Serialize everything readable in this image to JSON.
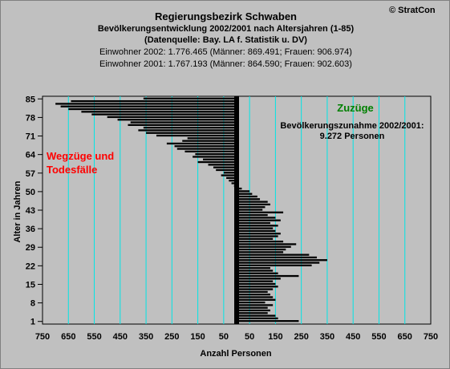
{
  "header": {
    "title": "Regierungsbezirk Schwaben",
    "subtitle": "Bevölkerungsentwicklung 2002/2001 nach Altersjahren (1-85)",
    "source": "(Datenquelle: Bay. LA f. Statistik u. DV)",
    "pop2002": "Einwohner 2002: 1.776.465  (Männer: 869.491; Frauen: 906.974)",
    "pop2001": "Einwohner 2001: 1.767.193  (Männer: 864.590; Frauen: 902.603)",
    "copyright": "© StratCon"
  },
  "annotations": {
    "left_line1": "Wegzüge und",
    "left_line2": "Todesfälle",
    "right_label": "Zuzüge",
    "increase_line1": "Bevölkerungszunahme 2002/2001:",
    "increase_line2": "9.272 Personen"
  },
  "colors": {
    "background": "#c0c0c0",
    "grid": "#00e5e5",
    "bars": "#000000",
    "left_annotation": "#ff0000",
    "right_annotation": "#008000"
  },
  "chart_data": {
    "type": "bar",
    "orientation": "horizontal",
    "xlabel": "Anzahl Personen",
    "ylabel": "Alter in Jahren",
    "xlim": [
      -750,
      750
    ],
    "x_ticks": [
      -750,
      -650,
      -550,
      -450,
      -350,
      -250,
      -150,
      -50,
      50,
      150,
      250,
      350,
      450,
      550,
      650,
      750
    ],
    "x_tick_labels": [
      "750",
      "650",
      "550",
      "450",
      "350",
      "250",
      "150",
      "50",
      "50",
      "150",
      "250",
      "350",
      "450",
      "550",
      "650",
      "750"
    ],
    "y_ticks": [
      1,
      8,
      15,
      22,
      29,
      36,
      43,
      50,
      57,
      64,
      71,
      78,
      85
    ],
    "grid": true,
    "ages": [
      1,
      2,
      3,
      4,
      5,
      6,
      7,
      8,
      9,
      10,
      11,
      12,
      13,
      14,
      15,
      16,
      17,
      18,
      19,
      20,
      21,
      22,
      23,
      24,
      25,
      26,
      27,
      28,
      29,
      30,
      31,
      32,
      33,
      34,
      35,
      36,
      37,
      38,
      39,
      40,
      41,
      42,
      43,
      44,
      45,
      46,
      47,
      48,
      49,
      50,
      51,
      52,
      53,
      54,
      55,
      56,
      57,
      58,
      59,
      60,
      61,
      62,
      63,
      64,
      65,
      66,
      67,
      68,
      69,
      70,
      71,
      72,
      73,
      74,
      75,
      76,
      77,
      78,
      79,
      80,
      81,
      82,
      83,
      84,
      85
    ],
    "values": [
      240,
      160,
      150,
      120,
      130,
      120,
      140,
      110,
      150,
      140,
      130,
      120,
      140,
      160,
      150,
      140,
      170,
      240,
      160,
      140,
      130,
      290,
      320,
      350,
      310,
      280,
      180,
      190,
      210,
      230,
      180,
      140,
      160,
      170,
      150,
      140,
      160,
      130,
      170,
      150,
      120,
      180,
      100,
      110,
      130,
      120,
      90,
      80,
      60,
      50,
      20,
      -10,
      -20,
      -30,
      -40,
      -60,
      -50,
      -80,
      -90,
      -110,
      -150,
      -130,
      -170,
      -160,
      -200,
      -230,
      -240,
      -270,
      -210,
      -190,
      -310,
      -350,
      -380,
      -360,
      -420,
      -410,
      -460,
      -500,
      -560,
      -600,
      -650,
      -680,
      -700,
      -640,
      -360
    ]
  }
}
